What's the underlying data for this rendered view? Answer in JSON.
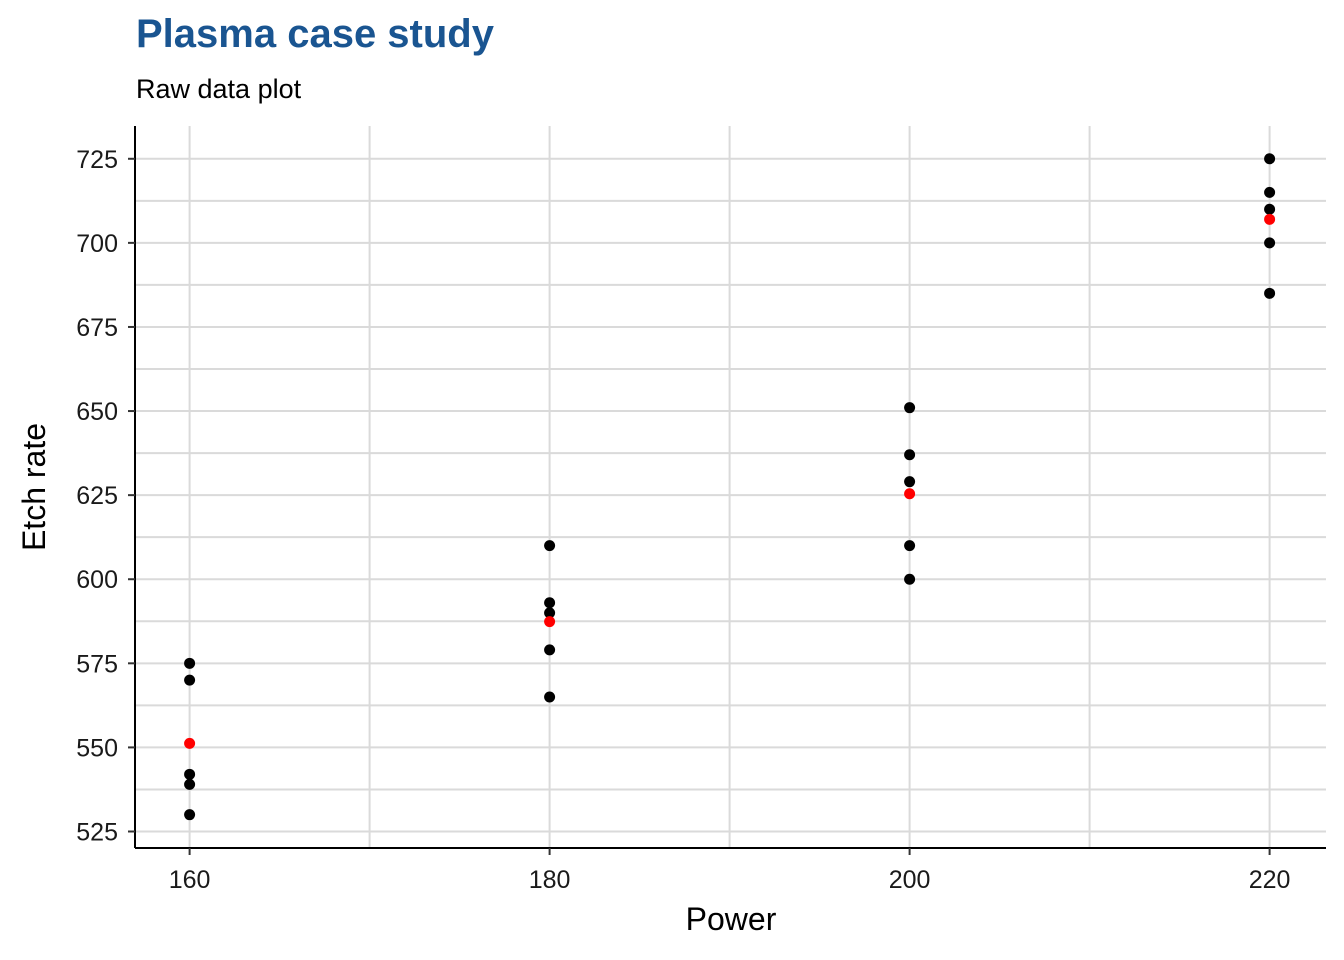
{
  "chart_data": {
    "type": "scatter",
    "title": "Plasma case study",
    "subtitle": "Raw data plot",
    "xlabel": "Power",
    "ylabel": "Etch rate",
    "xlim": [
      157,
      223
    ],
    "ylim": [
      520,
      735
    ],
    "x_ticks": [
      160,
      180,
      200,
      220
    ],
    "x_minor_ticks": [
      170,
      190,
      210
    ],
    "y_ticks": [
      525,
      550,
      575,
      600,
      625,
      650,
      675,
      700,
      725
    ],
    "y_minor_ticks": [
      537.5,
      562.5,
      587.5,
      612.5,
      637.5,
      662.5,
      687.5,
      712.5
    ],
    "grid": true,
    "legend": "none",
    "series": [
      {
        "color": "#000000",
        "points": [
          {
            "x": 160,
            "y": 575
          },
          {
            "x": 160,
            "y": 570
          },
          {
            "x": 160,
            "y": 542
          },
          {
            "x": 160,
            "y": 539
          },
          {
            "x": 160,
            "y": 530
          },
          {
            "x": 180,
            "y": 610
          },
          {
            "x": 180,
            "y": 593
          },
          {
            "x": 180,
            "y": 590
          },
          {
            "x": 180,
            "y": 579
          },
          {
            "x": 180,
            "y": 565
          },
          {
            "x": 200,
            "y": 651
          },
          {
            "x": 200,
            "y": 637
          },
          {
            "x": 200,
            "y": 629
          },
          {
            "x": 200,
            "y": 610
          },
          {
            "x": 200,
            "y": 600
          },
          {
            "x": 220,
            "y": 725
          },
          {
            "x": 220,
            "y": 715
          },
          {
            "x": 220,
            "y": 710
          },
          {
            "x": 220,
            "y": 700
          },
          {
            "x": 220,
            "y": 685
          }
        ]
      },
      {
        "color": "#ff0000",
        "points": [
          {
            "x": 160,
            "y": 551.2
          },
          {
            "x": 180,
            "y": 587.4
          },
          {
            "x": 200,
            "y": 625.4
          },
          {
            "x": 220,
            "y": 707.0
          }
        ]
      }
    ]
  }
}
